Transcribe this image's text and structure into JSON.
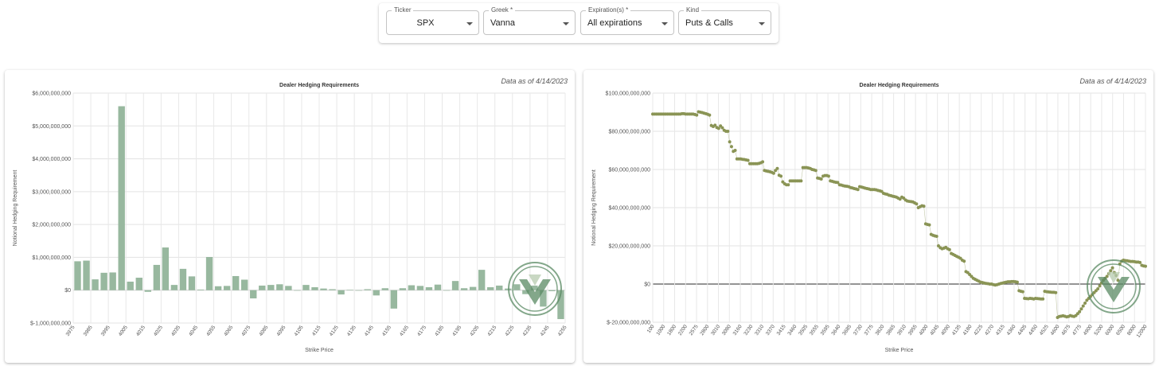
{
  "filters": {
    "ticker": {
      "label": "Ticker",
      "value": "SPX"
    },
    "greek": {
      "label": "Greek *",
      "value": "Vanna"
    },
    "expirations": {
      "label": "Expiration(s) *",
      "value": "All expirations"
    },
    "kind": {
      "label": "Kind",
      "value": "Puts & Calls"
    }
  },
  "colors": {
    "bar": "#98b89f",
    "dot": "#8a9455",
    "accent": "#5a8a63"
  },
  "logo": {
    "name": "green-v-logo"
  },
  "chart_data": [
    {
      "type": "bar",
      "title": "Dealer Hedging Requirements",
      "note": "Data as of 4/14/2023",
      "xlabel": "Strike Price",
      "ylabel": "Notional Hedging Requirement",
      "ylim": [
        -1000000000,
        6000000000
      ],
      "yticks": [
        6000000000,
        5000000000,
        4000000000,
        3000000000,
        2000000000,
        1000000000,
        0,
        -1000000000
      ],
      "ytick_labels": [
        "$6,000,000,000",
        "$5,000,000,000",
        "$4,000,000,000",
        "$3,000,000,000",
        "$2,000,000,000",
        "$1,000,000,000",
        "$0",
        "$-1,000,000,000"
      ],
      "grid": true,
      "categories": [
        "3975",
        "3980",
        "3985",
        "3990",
        "3995",
        "4000",
        "4005",
        "4010",
        "4015",
        "4020",
        "4025",
        "4030",
        "4035",
        "4040",
        "4045",
        "4050",
        "4055",
        "4060",
        "4065",
        "4070",
        "4075",
        "4080",
        "4085",
        "4090",
        "4095",
        "4100",
        "4105",
        "4110",
        "4115",
        "4120",
        "4125",
        "4130",
        "4135",
        "4140",
        "4145",
        "4150",
        "4155",
        "4160",
        "4165",
        "4170",
        "4175",
        "4180",
        "4185",
        "4190",
        "4195",
        "4200",
        "4205",
        "4210",
        "4215",
        "4220",
        "4225",
        "4230",
        "4235",
        "4240",
        "4245",
        "4250"
      ],
      "tick_labels": [
        "3975",
        "3985",
        "3995",
        "4005",
        "4015",
        "4025",
        "4035",
        "4045",
        "4055",
        "4065",
        "4075",
        "4085",
        "4095",
        "4105",
        "4115",
        "4125",
        "4135",
        "4145",
        "4155",
        "4165",
        "4175",
        "4185",
        "4195",
        "4205",
        "4215",
        "4225",
        "4235",
        "4245",
        "4255"
      ],
      "values": [
        880000000,
        900000000,
        330000000,
        530000000,
        540000000,
        5600000000,
        260000000,
        380000000,
        -50000000,
        770000000,
        1300000000,
        160000000,
        650000000,
        420000000,
        20000000,
        1010000000,
        120000000,
        130000000,
        430000000,
        320000000,
        -250000000,
        140000000,
        160000000,
        180000000,
        130000000,
        0,
        160000000,
        90000000,
        50000000,
        30000000,
        -130000000,
        10000000,
        -10000000,
        30000000,
        -160000000,
        60000000,
        -560000000,
        60000000,
        150000000,
        130000000,
        90000000,
        170000000,
        0,
        280000000,
        60000000,
        100000000,
        620000000,
        90000000,
        140000000,
        50000000,
        180000000,
        -120000000,
        140000000,
        -500000000,
        -30000000,
        -880000000
      ]
    },
    {
      "type": "scatter",
      "title": "Dealer Hedging Requirements",
      "note": "Data as of 4/14/2023",
      "xlabel": "Strike Price",
      "ylabel": "Notional Hedging Requirement",
      "ylim": [
        -20000000000,
        100000000000
      ],
      "yticks": [
        100000000000,
        80000000000,
        60000000000,
        40000000000,
        20000000000,
        0,
        -20000000000
      ],
      "ytick_labels": [
        "$100,000,000,000",
        "$80,000,000,000",
        "$60,000,000,000",
        "$40,000,000,000",
        "$20,000,000,000",
        "$0",
        "$-20,000,000,000"
      ],
      "grid": true,
      "tick_labels": [
        "100",
        "1000",
        "1800",
        "2200",
        "2575",
        "2800",
        "3010",
        "3080",
        "3160",
        "3230",
        "3310",
        "3370",
        "3415",
        "3460",
        "3505",
        "3555",
        "3595",
        "3640",
        "3685",
        "3730",
        "3775",
        "3820",
        "3865",
        "3910",
        "3955",
        "4000",
        "4045",
        "4090",
        "4135",
        "4180",
        "4225",
        "4270",
        "4315",
        "4360",
        "4405",
        "4450",
        "4525",
        "4600",
        "4675",
        "4775",
        "4900",
        "5200",
        "6000",
        "6500",
        "8000",
        "12000"
      ],
      "points": [
        [
          0,
          89
        ],
        [
          1,
          89
        ],
        [
          2,
          89
        ],
        [
          3,
          89
        ],
        [
          4,
          89
        ],
        [
          5,
          89
        ],
        [
          6,
          89
        ],
        [
          7,
          89
        ],
        [
          8,
          89
        ],
        [
          9,
          89
        ],
        [
          10,
          89
        ],
        [
          11,
          89
        ],
        [
          12,
          89
        ],
        [
          13,
          89
        ],
        [
          14,
          89
        ],
        [
          15,
          89
        ],
        [
          16,
          89.2
        ],
        [
          17,
          89.2
        ],
        [
          18,
          89
        ],
        [
          19,
          89
        ],
        [
          20,
          89
        ],
        [
          21,
          89
        ],
        [
          22,
          89
        ],
        [
          23,
          88.8
        ],
        [
          24,
          88.5
        ],
        [
          25,
          90.2
        ],
        [
          26,
          90
        ],
        [
          27,
          89.8
        ],
        [
          28,
          89.5
        ],
        [
          29,
          89.2
        ],
        [
          30,
          88.9
        ],
        [
          31,
          88.5
        ],
        [
          32,
          83
        ],
        [
          33,
          82.5
        ],
        [
          34,
          83.2
        ],
        [
          35,
          82
        ],
        [
          36,
          81.5
        ],
        [
          37,
          82.8
        ],
        [
          38,
          81.8
        ],
        [
          39,
          80.5
        ],
        [
          40,
          80
        ],
        [
          41,
          80
        ],
        [
          42,
          74.5
        ],
        [
          43,
          72
        ],
        [
          44,
          69.5
        ],
        [
          45,
          70
        ],
        [
          46,
          65.5
        ],
        [
          47,
          65.5
        ],
        [
          48,
          65.5
        ],
        [
          49,
          65.3
        ],
        [
          50,
          65.2
        ],
        [
          51,
          65
        ],
        [
          52,
          64.8
        ],
        [
          53,
          63
        ],
        [
          54,
          63
        ],
        [
          55,
          63
        ],
        [
          56,
          63
        ],
        [
          57,
          63
        ],
        [
          58,
          63.2
        ],
        [
          59,
          63.5
        ],
        [
          60,
          64
        ],
        [
          61,
          59.5
        ],
        [
          62,
          59.2
        ],
        [
          63,
          59
        ],
        [
          64,
          58.8
        ],
        [
          65,
          58.5
        ],
        [
          66,
          58
        ],
        [
          67,
          59.5
        ],
        [
          68,
          60.5
        ],
        [
          69,
          57
        ],
        [
          70,
          56.5
        ],
        [
          71,
          53.5
        ],
        [
          72,
          52.5
        ],
        [
          73,
          52
        ],
        [
          74,
          52
        ],
        [
          75,
          54
        ],
        [
          76,
          54
        ],
        [
          77,
          54
        ],
        [
          78,
          54
        ],
        [
          79,
          54
        ],
        [
          80,
          54
        ],
        [
          81,
          54
        ],
        [
          82,
          61
        ],
        [
          83,
          61
        ],
        [
          84,
          61
        ],
        [
          85,
          60.8
        ],
        [
          86,
          60.5
        ],
        [
          87,
          60
        ],
        [
          88,
          59.8
        ],
        [
          89,
          59.5
        ],
        [
          90,
          55.5
        ],
        [
          91,
          55.3
        ],
        [
          92,
          55
        ],
        [
          93,
          56.5
        ],
        [
          94,
          56.8
        ],
        [
          95,
          56.8
        ],
        [
          96,
          56.5
        ],
        [
          97,
          54
        ],
        [
          98,
          53.8
        ],
        [
          99,
          53.5
        ],
        [
          100,
          53.3
        ],
        [
          101,
          53.2
        ],
        [
          102,
          52
        ],
        [
          103,
          51.8
        ],
        [
          104,
          51.5
        ],
        [
          105,
          51.3
        ],
        [
          106,
          51.2
        ],
        [
          107,
          51
        ],
        [
          108,
          50.5
        ],
        [
          109,
          50.3
        ],
        [
          110,
          50
        ],
        [
          111,
          49.8
        ],
        [
          112,
          49.5
        ],
        [
          113,
          51
        ],
        [
          114,
          50.8
        ],
        [
          115,
          50.5
        ],
        [
          116,
          50.2
        ],
        [
          117,
          50
        ],
        [
          118,
          49.8
        ],
        [
          119,
          49.5
        ],
        [
          120,
          49.5
        ],
        [
          121,
          49.5
        ],
        [
          122,
          49.3
        ],
        [
          123,
          49
        ],
        [
          124,
          48.8
        ],
        [
          125,
          48.5
        ],
        [
          126,
          47.5
        ],
        [
          127,
          47.2
        ],
        [
          128,
          47
        ],
        [
          129,
          46.5
        ],
        [
          130,
          46.3
        ],
        [
          131,
          46
        ],
        [
          132,
          45.8
        ],
        [
          133,
          45.5
        ],
        [
          134,
          45
        ],
        [
          135,
          44.5
        ],
        [
          136,
          45.5
        ],
        [
          137,
          45
        ],
        [
          138,
          44
        ],
        [
          139,
          43.5
        ],
        [
          140,
          43.3
        ],
        [
          141,
          43.2
        ],
        [
          142,
          43
        ],
        [
          143,
          42.5
        ],
        [
          144,
          42
        ],
        [
          145,
          40
        ],
        [
          146,
          40.5
        ],
        [
          147,
          41
        ],
        [
          148,
          40.8
        ],
        [
          149,
          31.5
        ],
        [
          150,
          31.2
        ],
        [
          151,
          31
        ],
        [
          152,
          26
        ],
        [
          153,
          25.5
        ],
        [
          154,
          25.2
        ],
        [
          155,
          25
        ],
        [
          156,
          20
        ],
        [
          157,
          19
        ],
        [
          158,
          18.5
        ],
        [
          159,
          18.8
        ],
        [
          160,
          19.2
        ],
        [
          161,
          18.5
        ],
        [
          162,
          18
        ],
        [
          163,
          16
        ],
        [
          164,
          15.5
        ],
        [
          165,
          15
        ],
        [
          166,
          14.5
        ],
        [
          167,
          14
        ],
        [
          168,
          13.5
        ],
        [
          169,
          12.5
        ],
        [
          170,
          12
        ],
        [
          171,
          6.5
        ],
        [
          172,
          6
        ],
        [
          173,
          5
        ],
        [
          174,
          4
        ],
        [
          175,
          3
        ],
        [
          176,
          2.5
        ],
        [
          177,
          2
        ],
        [
          178,
          1.5
        ],
        [
          179,
          1
        ],
        [
          180,
          0.8
        ],
        [
          181,
          0.5
        ],
        [
          182,
          0.3
        ],
        [
          183,
          0.2
        ],
        [
          184,
          0
        ],
        [
          185,
          0
        ],
        [
          186,
          -0.3
        ],
        [
          187,
          -0.5
        ],
        [
          188,
          -0.3
        ],
        [
          189,
          0
        ],
        [
          190,
          0.3
        ],
        [
          191,
          0.5
        ],
        [
          192,
          0.8
        ],
        [
          193,
          1
        ],
        [
          194,
          1.2
        ],
        [
          195,
          1.2
        ],
        [
          196,
          1.3
        ],
        [
          197,
          1.3
        ],
        [
          198,
          1.2
        ],
        [
          199,
          1
        ],
        [
          200,
          -3.5
        ],
        [
          201,
          -3.8
        ],
        [
          202,
          -4
        ],
        [
          203,
          -7.5
        ],
        [
          204,
          -7.6
        ],
        [
          205,
          -7.7
        ],
        [
          206,
          -7.5
        ],
        [
          207,
          -7.6
        ],
        [
          208,
          -7.8
        ],
        [
          209,
          -7.5
        ],
        [
          210,
          -7.6
        ],
        [
          211,
          -7.7
        ],
        [
          212,
          -7.8
        ],
        [
          213,
          -7.8
        ],
        [
          214,
          -3.8
        ],
        [
          215,
          -4
        ],
        [
          216,
          -4.1
        ],
        [
          217,
          -4.2
        ],
        [
          218,
          -4.3
        ],
        [
          219,
          -4.3
        ],
        [
          220,
          -4.5
        ],
        [
          221,
          -17.5
        ],
        [
          222,
          -17
        ],
        [
          223,
          -16.8
        ],
        [
          224,
          -16.6
        ],
        [
          225,
          -16.9
        ],
        [
          226,
          -17.2
        ],
        [
          227,
          -17
        ],
        [
          228,
          -16.5
        ],
        [
          229,
          -16.8
        ],
        [
          230,
          -17
        ],
        [
          231,
          -16.5
        ],
        [
          232,
          -15.5
        ],
        [
          233,
          -14.5
        ],
        [
          234,
          -13
        ],
        [
          235,
          -11.5
        ],
        [
          236,
          -10
        ],
        [
          237,
          -8.5
        ],
        [
          238,
          -7.5
        ],
        [
          239,
          -6.5
        ],
        [
          240,
          -5.5
        ],
        [
          241,
          -4.5
        ],
        [
          242,
          -3.5
        ],
        [
          243,
          -2.5
        ],
        [
          244,
          -1
        ],
        [
          245,
          0.5
        ],
        [
          246,
          2
        ],
        [
          247,
          3
        ],
        [
          248,
          4
        ],
        [
          249,
          5.5
        ],
        [
          250,
          7
        ],
        [
          251,
          8.5
        ],
        [
          252,
          6
        ],
        [
          253,
          4.5
        ],
        [
          254,
          2
        ],
        [
          255,
          10.5
        ],
        [
          256,
          12
        ],
        [
          257,
          12.5
        ],
        [
          258,
          12.3
        ],
        [
          259,
          12.2
        ],
        [
          260,
          12
        ],
        [
          261,
          11.8
        ],
        [
          262,
          11.8
        ],
        [
          263,
          11.7
        ],
        [
          264,
          11.5
        ],
        [
          265,
          11.5
        ],
        [
          266,
          11.3
        ],
        [
          267,
          9.8
        ],
        [
          268,
          9.5
        ],
        [
          269,
          9.3
        ]
      ]
    }
  ]
}
